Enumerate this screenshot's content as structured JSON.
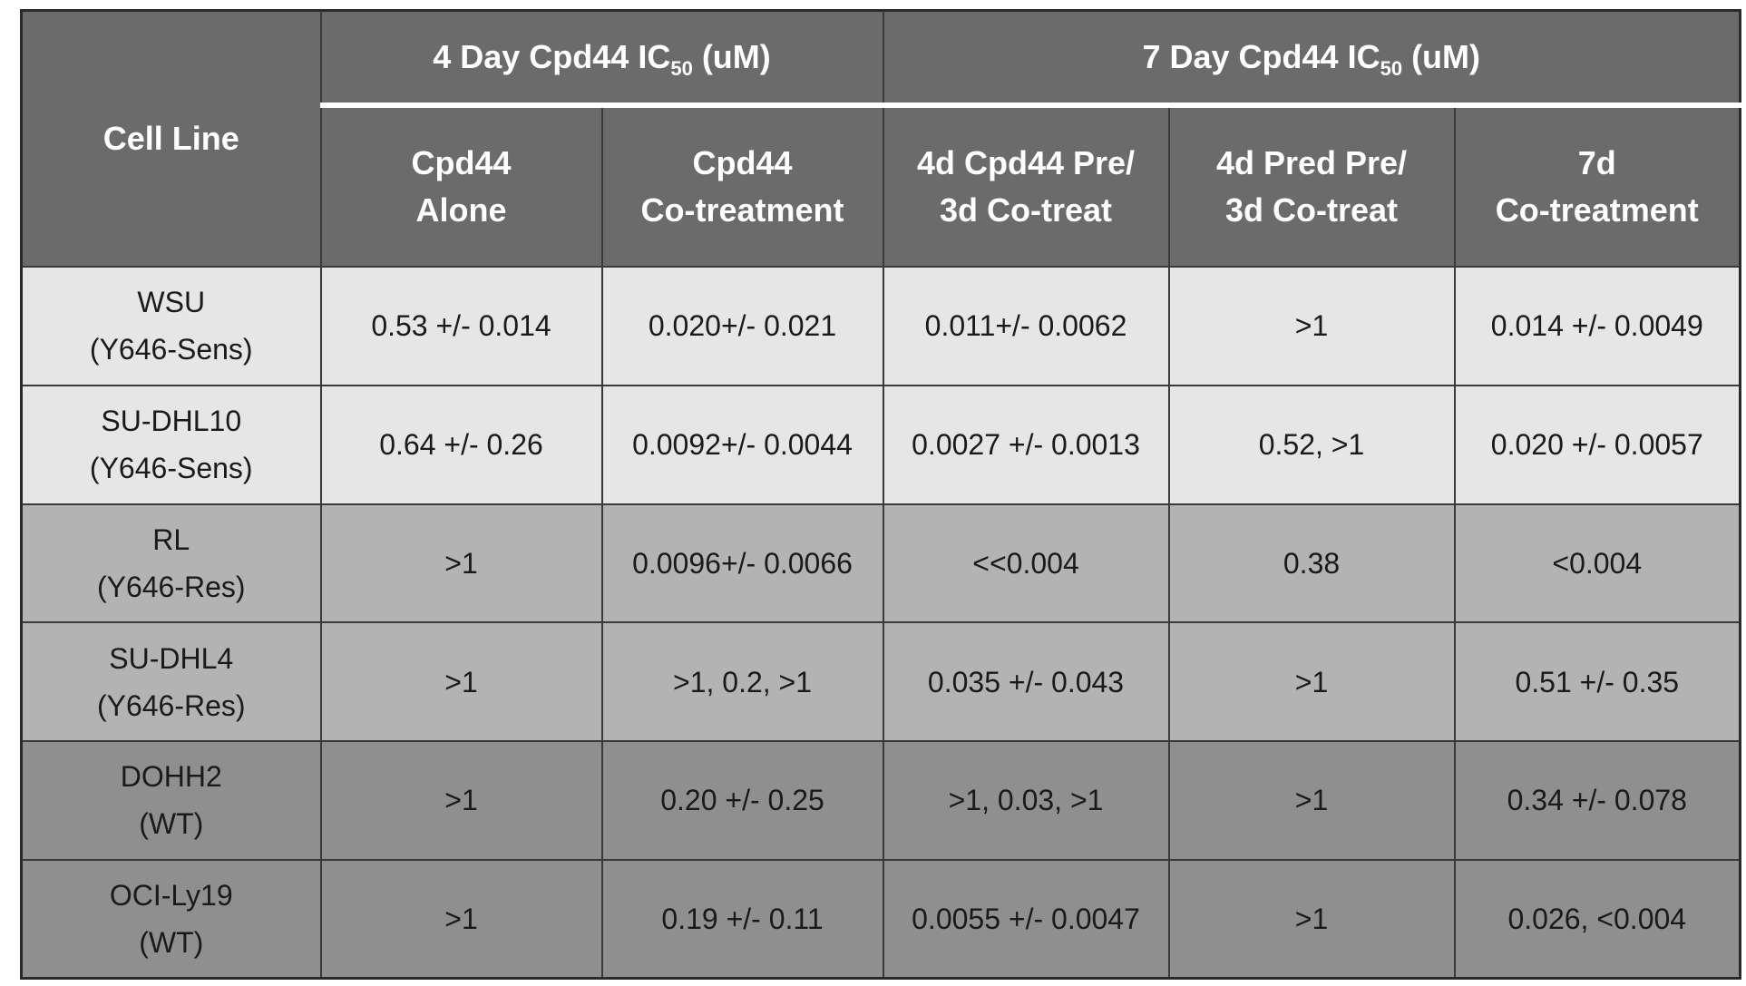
{
  "header": {
    "cell_line": "Cell Line",
    "group_4day": {
      "prefix": "4 Day Cpd44 IC",
      "sub": "50",
      "suffix": " (uM)"
    },
    "group_7day": {
      "prefix": "7 Day Cpd44 IC",
      "sub": "50",
      "suffix": " (uM)"
    },
    "columns": [
      {
        "line1": "Cpd44",
        "line2": "Alone"
      },
      {
        "line1": "Cpd44",
        "line2": "Co-treatment"
      },
      {
        "line1": "4d Cpd44 Pre/",
        "line2": "3d Co-treat"
      },
      {
        "line1": "4d Pred Pre/",
        "line2": "3d Co-treat"
      },
      {
        "line1": "7d",
        "line2": "Co-treatment"
      }
    ]
  },
  "rows": [
    {
      "name": "WSU",
      "type": "(Y646-Sens)",
      "values": [
        "0.53 +/- 0.014",
        "0.020+/- 0.021",
        "0.011+/- 0.0062",
        ">1",
        "0.014 +/- 0.0049"
      ]
    },
    {
      "name": "SU-DHL10",
      "type": "(Y646-Sens)",
      "values": [
        "0.64 +/- 0.26",
        "0.0092+/- 0.0044",
        "0.0027 +/- 0.0013",
        "0.52, >1",
        "0.020 +/- 0.0057"
      ]
    },
    {
      "name": "RL",
      "type": "(Y646-Res)",
      "values": [
        ">1",
        "0.0096+/- 0.0066",
        "<<0.004",
        "0.38",
        "<0.004"
      ]
    },
    {
      "name": "SU-DHL4",
      "type": "(Y646-Res)",
      "values": [
        ">1",
        ">1, 0.2, >1",
        "0.035 +/- 0.043",
        ">1",
        "0.51 +/- 0.35"
      ]
    },
    {
      "name": "DOHH2",
      "type": "(WT)",
      "values": [
        ">1",
        "0.20 +/- 0.25",
        ">1, 0.03, >1",
        ">1",
        "0.34 +/- 0.078"
      ]
    },
    {
      "name": "OCI-Ly19",
      "type": "(WT)",
      "values": [
        ">1",
        "0.19 +/- 0.11",
        "0.0055 +/- 0.0047",
        ">1",
        "0.026, <0.004"
      ]
    }
  ],
  "colors": {
    "header": "#6b6b6b",
    "sens_rows": "#e6e6e6",
    "res_rows": "#b3b3b3",
    "wt_rows": "#8f8f8f"
  }
}
